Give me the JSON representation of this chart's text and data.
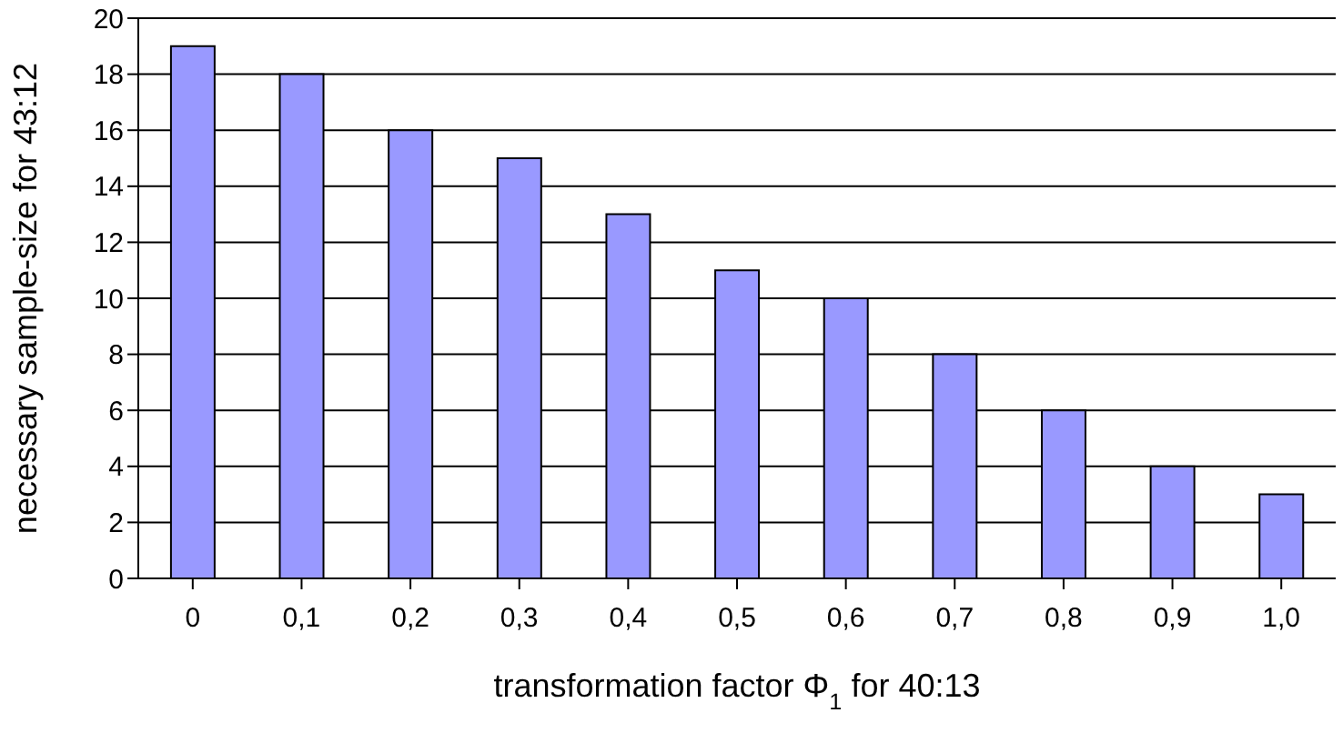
{
  "chart_data": {
    "type": "bar",
    "xlabel": "transformation factor Φ$_{1}$ for 40:13",
    "ylabel": "necessary sample-size for 43:12",
    "categories": [
      "0",
      "0,1",
      "0,2",
      "0,3",
      "0,4",
      "0,5",
      "0,6",
      "0,7",
      "0,8",
      "0,9",
      "1,0"
    ],
    "values": [
      19,
      18,
      16,
      15,
      13,
      11,
      10,
      8,
      6,
      4,
      3
    ],
    "color": "#9999ff",
    "ylim": [
      0,
      20
    ],
    "yticks": [
      0,
      2,
      4,
      6,
      8,
      10,
      12,
      14,
      16,
      18,
      20
    ],
    "grid": "y",
    "legend": false
  }
}
